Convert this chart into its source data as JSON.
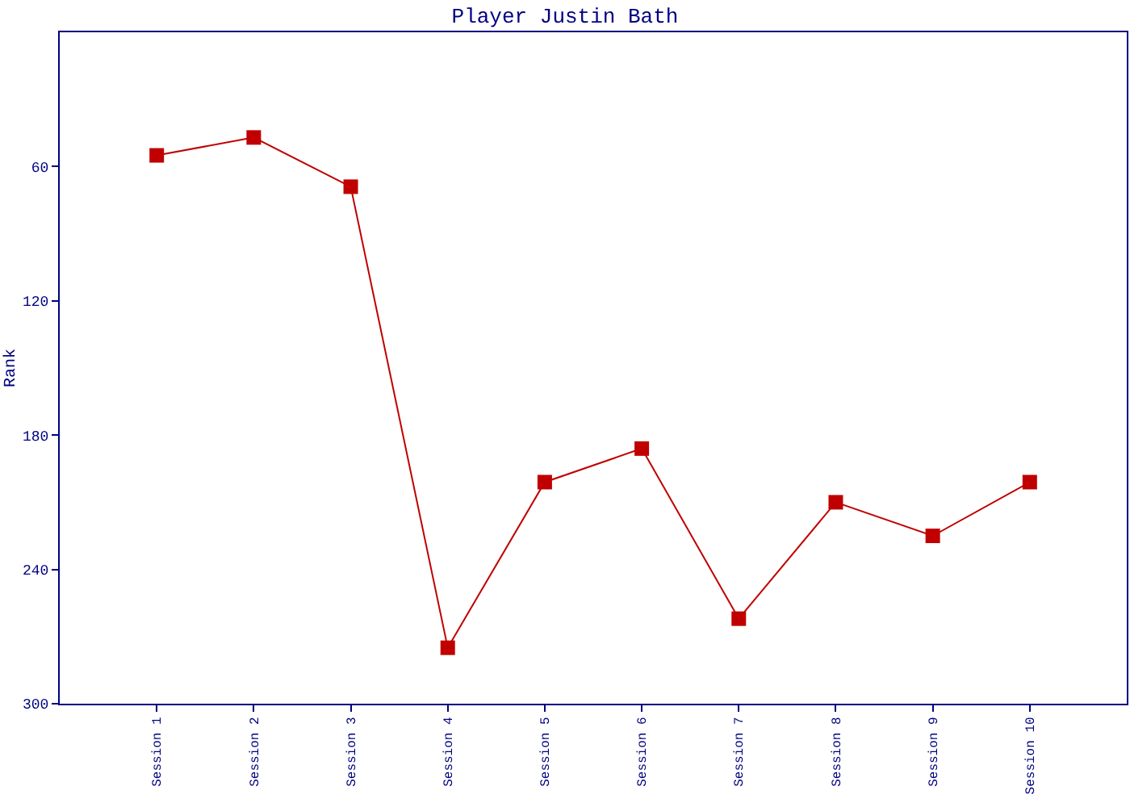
{
  "chart_data": {
    "type": "line",
    "title": "Player Justin Bath",
    "ylabel": "Rank",
    "categories": [
      "Session 1",
      "Session 2",
      "Session 3",
      "Session 4",
      "Session 5",
      "Session 6",
      "Session 7",
      "Session 8",
      "Session 9",
      "Session 10"
    ],
    "series": [
      {
        "color": "#c00000",
        "values": [
          55,
          47,
          69,
          275,
          201,
          186,
          262,
          210,
          225,
          201
        ]
      }
    ],
    "ylim": [
      300,
      0
    ],
    "yticks": [
      60,
      120,
      180,
      240,
      300
    ],
    "marker": "square",
    "line_style": "solid",
    "legend": false
  }
}
